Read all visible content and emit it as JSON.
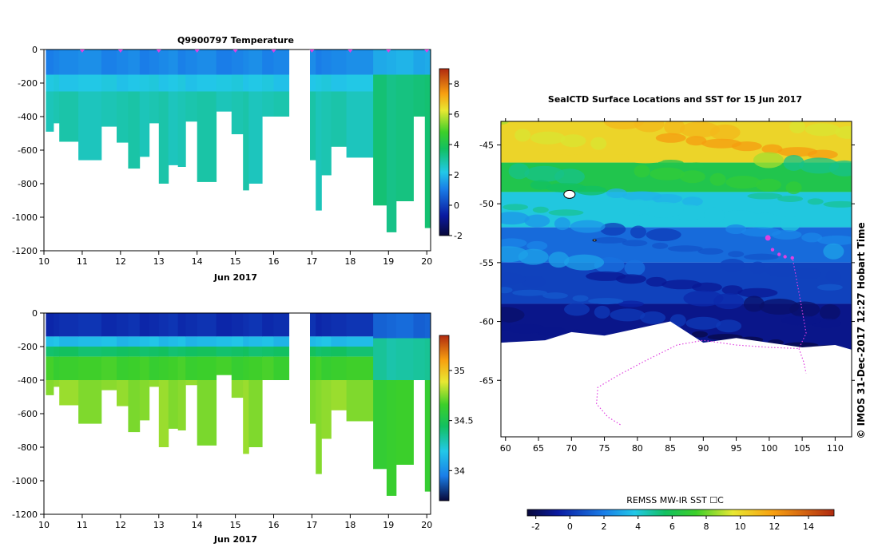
{
  "page": {
    "temp_title": "Q9900797  Temperature",
    "map_title": "SealCTD Surface Locations and SST for 15 Jun 2017",
    "side_stamp": "© IMOS 31-Dec-2017 12:27 Hobart Time",
    "sst_colorbar_label": "REMSS MW-IR SST ☐C"
  },
  "colors": {
    "profile_marker": "#e040e0",
    "track": "#e040e0",
    "land": "#ffffff"
  },
  "chart_data": [
    {
      "id": "temperature_section",
      "type": "heatmap",
      "title": "Q9900797  Temperature",
      "xlabel": "Jun 2017",
      "ylabel": "",
      "xlim": [
        10,
        20.1
      ],
      "ylim": [
        -1200,
        0
      ],
      "xticks": [
        10,
        11,
        12,
        13,
        14,
        15,
        16,
        17,
        18,
        19,
        20
      ],
      "yticks": [
        0,
        -200,
        -400,
        -600,
        -800,
        -1000,
        -1200
      ],
      "colorbar": {
        "min": -2,
        "max": 9,
        "ticks": [
          -2,
          0,
          2,
          4,
          6,
          8
        ]
      },
      "profile_marker_days": [
        11,
        12,
        13,
        14,
        15,
        16,
        17,
        18,
        19,
        20
      ],
      "profiles": [
        {
          "x0": 10.05,
          "x1": 10.25,
          "depth": -490
        },
        {
          "x0": 10.25,
          "x1": 10.4,
          "depth": -440
        },
        {
          "x0": 10.4,
          "x1": 10.9,
          "depth": -550
        },
        {
          "x0": 10.9,
          "x1": 11.5,
          "depth": -660
        },
        {
          "x0": 11.5,
          "x1": 11.9,
          "depth": -460
        },
        {
          "x0": 11.9,
          "x1": 12.2,
          "depth": -555
        },
        {
          "x0": 12.2,
          "x1": 12.5,
          "depth": -710
        },
        {
          "x0": 12.5,
          "x1": 12.75,
          "depth": -640
        },
        {
          "x0": 12.75,
          "x1": 13.0,
          "depth": -440
        },
        {
          "x0": 13.0,
          "x1": 13.25,
          "depth": -800
        },
        {
          "x0": 13.25,
          "x1": 13.5,
          "depth": -690
        },
        {
          "x0": 13.5,
          "x1": 13.7,
          "depth": -700
        },
        {
          "x0": 13.7,
          "x1": 14.0,
          "depth": -430
        },
        {
          "x0": 14.0,
          "x1": 14.5,
          "depth": -790
        },
        {
          "x0": 14.5,
          "x1": 14.9,
          "depth": -370
        },
        {
          "x0": 14.9,
          "x1": 15.2,
          "depth": -505
        },
        {
          "x0": 15.2,
          "x1": 15.35,
          "depth": -840
        },
        {
          "x0": 15.35,
          "x1": 15.7,
          "depth": -800
        },
        {
          "x0": 15.7,
          "x1": 16.0,
          "depth": -400
        },
        {
          "x0": 16.0,
          "x1": 16.4,
          "depth": -400
        },
        {
          "x0": 16.95,
          "x1": 17.1,
          "depth": -660
        },
        {
          "x0": 17.1,
          "x1": 17.25,
          "depth": -960
        },
        {
          "x0": 17.25,
          "x1": 17.5,
          "depth": -750
        },
        {
          "x0": 17.5,
          "x1": 17.9,
          "depth": -580
        },
        {
          "x0": 17.9,
          "x1": 18.6,
          "depth": -645
        },
        {
          "x0": 18.6,
          "x1": 18.95,
          "depth": -930
        },
        {
          "x0": 18.95,
          "x1": 19.2,
          "depth": -1090
        },
        {
          "x0": 19.2,
          "x1": 19.65,
          "depth": -905
        },
        {
          "x0": 19.65,
          "x1": 19.95,
          "depth": -400
        },
        {
          "x0": 19.95,
          "x1": 20.1,
          "depth": -1065
        }
      ],
      "layers": [
        {
          "depth": [
            0,
            -150
          ],
          "value": 1.2
        },
        {
          "depth": [
            -150,
            -250
          ],
          "value": 2.2
        },
        {
          "depth": [
            -250,
            -1200
          ],
          "value": 2.8
        }
      ],
      "late_layers": [
        {
          "depth": [
            0,
            -150
          ],
          "value": 1.8
        },
        {
          "depth": [
            -150,
            -1200
          ],
          "value": 3.4
        }
      ]
    },
    {
      "id": "salinity_section",
      "type": "heatmap",
      "title": "",
      "xlabel": "Jun 2017",
      "ylabel": "",
      "xlim": [
        10,
        20.1
      ],
      "ylim": [
        -1200,
        0
      ],
      "xticks": [
        10,
        11,
        12,
        13,
        14,
        15,
        16,
        17,
        18,
        19,
        20
      ],
      "yticks": [
        0,
        -200,
        -400,
        -600,
        -800,
        -1000,
        -1200
      ],
      "colorbar": {
        "min": 33.7,
        "max": 35.35,
        "ticks": [
          34,
          34.5,
          35
        ]
      },
      "layers": [
        {
          "depth": [
            0,
            -140
          ],
          "value": 33.95
        },
        {
          "depth": [
            -140,
            -200
          ],
          "value": 34.3
        },
        {
          "depth": [
            -200,
            -260
          ],
          "value": 34.55
        },
        {
          "depth": [
            -260,
            -400
          ],
          "value": 34.72
        },
        {
          "depth": [
            -400,
            -1200
          ],
          "value": 34.82
        }
      ],
      "late_layers": [
        {
          "depth": [
            0,
            -150
          ],
          "value": 34.1
        },
        {
          "depth": [
            -150,
            -400
          ],
          "value": 34.45
        },
        {
          "depth": [
            -400,
            -1200
          ],
          "value": 34.7
        }
      ]
    },
    {
      "id": "sst_map",
      "type": "heatmap",
      "title": "SealCTD Surface Locations and SST for 15 Jun 2017",
      "xlabel": "",
      "ylabel": "",
      "xlim": [
        59.3,
        112.5
      ],
      "ylim": [
        -69.8,
        -43
      ],
      "xticks": [
        60,
        65,
        70,
        75,
        80,
        85,
        90,
        95,
        100,
        105,
        110
      ],
      "yticks": [
        -45,
        -50,
        -55,
        -60,
        -65
      ],
      "colorbar": {
        "label": "REMSS MW-IR SST ☐C",
        "min": -2.5,
        "max": 15.5,
        "ticks": [
          -2,
          0,
          2,
          4,
          6,
          8,
          10,
          12,
          14
        ]
      },
      "sst_bands": [
        {
          "lat": [
            -43,
            -46.5
          ],
          "value": 11.5
        },
        {
          "lat": [
            -46.5,
            -49
          ],
          "value": 7.5
        },
        {
          "lat": [
            -49,
            -52
          ],
          "value": 4.5
        },
        {
          "lat": [
            -52,
            -55
          ],
          "value": 2.0
        },
        {
          "lat": [
            -55,
            -58.5
          ],
          "value": 0.8
        },
        {
          "lat": [
            -58.5,
            -62.5
          ],
          "value": -0.8
        }
      ],
      "ice_edge": [
        {
          "lon": 59.3,
          "lat": -61.8
        },
        {
          "lon": 66,
          "lat": -61.6
        },
        {
          "lon": 70,
          "lat": -60.9
        },
        {
          "lon": 75,
          "lat": -61.2
        },
        {
          "lon": 80,
          "lat": -60.6
        },
        {
          "lon": 85,
          "lat": -60.0
        },
        {
          "lon": 90,
          "lat": -61.8
        },
        {
          "lon": 95,
          "lat": -61.4
        },
        {
          "lon": 100,
          "lat": -61.8
        },
        {
          "lon": 105,
          "lat": -62.2
        },
        {
          "lon": 110,
          "lat": -62.0
        },
        {
          "lon": 112.5,
          "lat": -62.4
        }
      ],
      "seal_track": [
        {
          "lon": 103.5,
          "lat": -54.5
        },
        {
          "lon": 104.5,
          "lat": -57.5
        },
        {
          "lon": 105.6,
          "lat": -61.0
        },
        {
          "lon": 104.5,
          "lat": -62.3
        },
        {
          "lon": 100,
          "lat": -62.2
        },
        {
          "lon": 95,
          "lat": -62.0
        },
        {
          "lon": 90,
          "lat": -61.6
        },
        {
          "lon": 86,
          "lat": -62.0
        },
        {
          "lon": 81,
          "lat": -63.4
        },
        {
          "lon": 77,
          "lat": -64.6
        },
        {
          "lon": 74,
          "lat": -65.6
        },
        {
          "lon": 73.8,
          "lat": -67.0
        },
        {
          "lon": 75.5,
          "lat": -68.1
        },
        {
          "lon": 77.5,
          "lat": -68.8
        }
      ],
      "branch_track": [
        {
          "lon": 104.5,
          "lat": -62.3
        },
        {
          "lon": 105.2,
          "lat": -63.4
        },
        {
          "lon": 105.6,
          "lat": -64.4
        }
      ],
      "surface_locations": [
        {
          "lon": 99.8,
          "lat": -52.9
        },
        {
          "lon": 100.5,
          "lat": -53.9
        },
        {
          "lon": 101.5,
          "lat": -54.3
        },
        {
          "lon": 102.4,
          "lat": -54.5
        },
        {
          "lon": 103.5,
          "lat": -54.6
        }
      ],
      "islands": [
        {
          "lon": 69.7,
          "lat": -49.2
        },
        {
          "lon": 73.5,
          "lat": -53.1
        }
      ]
    }
  ]
}
